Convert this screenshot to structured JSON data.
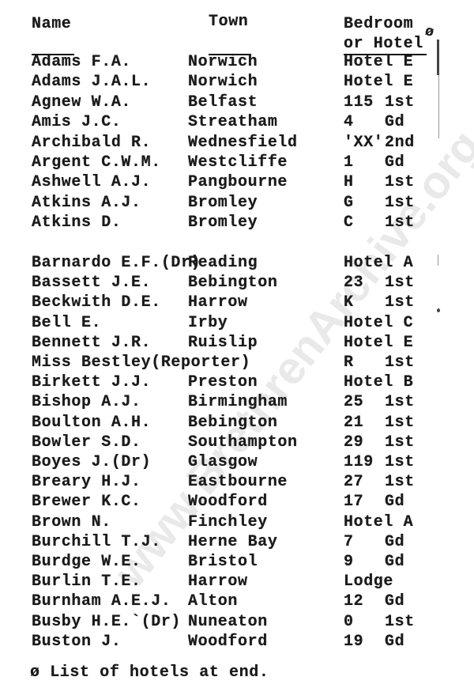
{
  "watermark": "www.BrethrenArchive.org",
  "header": {
    "name": "Name",
    "town": "Town",
    "room_line1": "Bedroom",
    "room_line2": "or Hotel",
    "note_symbol": "ø"
  },
  "groups": [
    [
      {
        "name": "Adams F.A.",
        "town": "Norwich",
        "room": "Hotel E",
        "floor": ""
      },
      {
        "name": "Adams J.A.L.",
        "town": "Norwich",
        "room": "Hotel E",
        "floor": ""
      },
      {
        "name": "Agnew W.A.",
        "town": "Belfast",
        "room": "115",
        "floor": "1st"
      },
      {
        "name": "Amis J.C.",
        "town": "Streatham",
        "room": "4",
        "floor": "Gd"
      },
      {
        "name": "Archibald R.",
        "town": "Wednesfield",
        "room": "'XX'",
        "floor": "2nd"
      },
      {
        "name": "Argent C.W.M.",
        "town": "Westcliffe",
        "room": "1",
        "floor": "Gd"
      },
      {
        "name": "Ashwell A.J.",
        "town": "Pangbourne",
        "room": "H",
        "floor": "1st"
      },
      {
        "name": "Atkins A.J.",
        "town": "Bromley",
        "room": "G",
        "floor": "1st"
      },
      {
        "name": "Atkins D.",
        "town": "Bromley",
        "room": "C",
        "floor": "1st"
      }
    ],
    [
      {
        "name": "Barnardo E.F.(Dr)",
        "town": "Reading",
        "room": "Hotel A",
        "floor": ""
      },
      {
        "name": "Bassett J.E.",
        "town": "Bebington",
        "room": "23",
        "floor": "1st"
      },
      {
        "name": "Beckwith D.E.",
        "town": "Harrow",
        "room": "K",
        "floor": "1st"
      },
      {
        "name": "Bell E.",
        "town": "Irby",
        "room": "Hotel C",
        "floor": ""
      },
      {
        "name": "Bennett J.R.",
        "town": "Ruislip",
        "room": "Hotel E",
        "floor": ""
      },
      {
        "name": "Miss Bestley(Reporter)",
        "town": "",
        "room": "R",
        "floor": "1st"
      },
      {
        "name": "Birkett J.J.",
        "town": "Preston",
        "room": "Hotel B",
        "floor": ""
      },
      {
        "name": "Bishop A.J.",
        "town": "Birmingham",
        "room": "25",
        "floor": "1st"
      },
      {
        "name": "Boulton A.H.",
        "town": "Bebington",
        "room": "21",
        "floor": "1st"
      },
      {
        "name": "Bowler S.D.",
        "town": "Southampton",
        "room": "29",
        "floor": "1st"
      },
      {
        "name": "Boyes J.(Dr)",
        "town": "Glasgow",
        "room": "119",
        "floor": "1st"
      },
      {
        "name": "Breary H.J.",
        "town": "Eastbourne",
        "room": "27",
        "floor": "1st"
      },
      {
        "name": "Brewer K.C.",
        "town": "Woodford",
        "room": "17",
        "floor": "Gd"
      },
      {
        "name": "Brown N.",
        "town": "Finchley",
        "room": "Hotel A",
        "floor": ""
      },
      {
        "name": "Burchill T.J.",
        "town": "Herne Bay",
        "room": "7",
        "floor": "Gd"
      },
      {
        "name": "Burdge W.E.",
        "town": "Bristol",
        "room": "9",
        "floor": "Gd"
      },
      {
        "name": "Burlin T.E.",
        "town": "Harrow",
        "room": "Lodge",
        "floor": ""
      },
      {
        "name": "Burnham A.E.J.",
        "town": "Alton",
        "room": "12",
        "floor": "Gd"
      },
      {
        "name": "Busby H.E.`(Dr)",
        "town": "Nuneaton",
        "room": "0",
        "floor": "1st"
      },
      {
        "name": "Buston J.",
        "town": "Woodford",
        "room": "19",
        "floor": "Gd"
      }
    ]
  ],
  "footnote": "ø List of hotels at end."
}
